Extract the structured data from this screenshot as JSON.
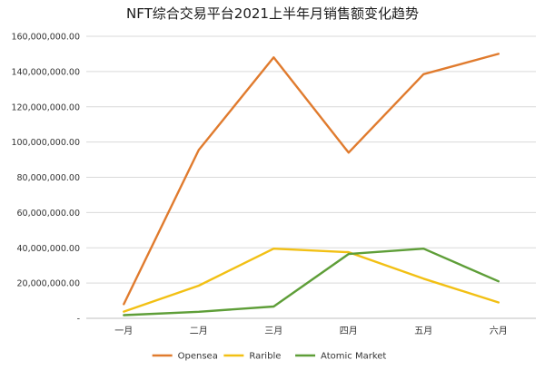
{
  "chart_data": {
    "type": "line",
    "title": "NFT综合交易平台2021上半年月销售额变化趋势",
    "categories": [
      "一月",
      "二月",
      "三月",
      "四月",
      "五月",
      "六月"
    ],
    "ylim": [
      0,
      160000000
    ],
    "yticks": [
      {
        "value": 0,
        "label": "-"
      },
      {
        "value": 20000000,
        "label": "20,000,000.00"
      },
      {
        "value": 40000000,
        "label": "40,000,000.00"
      },
      {
        "value": 60000000,
        "label": "60,000,000.00"
      },
      {
        "value": 80000000,
        "label": "80,000,000.00"
      },
      {
        "value": 100000000,
        "label": "100,000,000.00"
      },
      {
        "value": 120000000,
        "label": "120,000,000.00"
      },
      {
        "value": 140000000,
        "label": "140,000,000.00"
      },
      {
        "value": 160000000,
        "label": "160,000,000.00"
      }
    ],
    "grid": true,
    "legend_position": "bottom",
    "series": [
      {
        "name": "Opensea",
        "color": "#E07B2E",
        "values": [
          8000000,
          95500000,
          148000000,
          94000000,
          138500000,
          150000000
        ]
      },
      {
        "name": "Rarible",
        "color": "#F2C014",
        "values": [
          3800000,
          18500000,
          39500000,
          37500000,
          22500000,
          9000000
        ]
      },
      {
        "name": "Atomic Market",
        "color": "#5E9E38",
        "values": [
          1800000,
          3700000,
          6700000,
          36500000,
          39500000,
          21000000
        ]
      }
    ]
  }
}
